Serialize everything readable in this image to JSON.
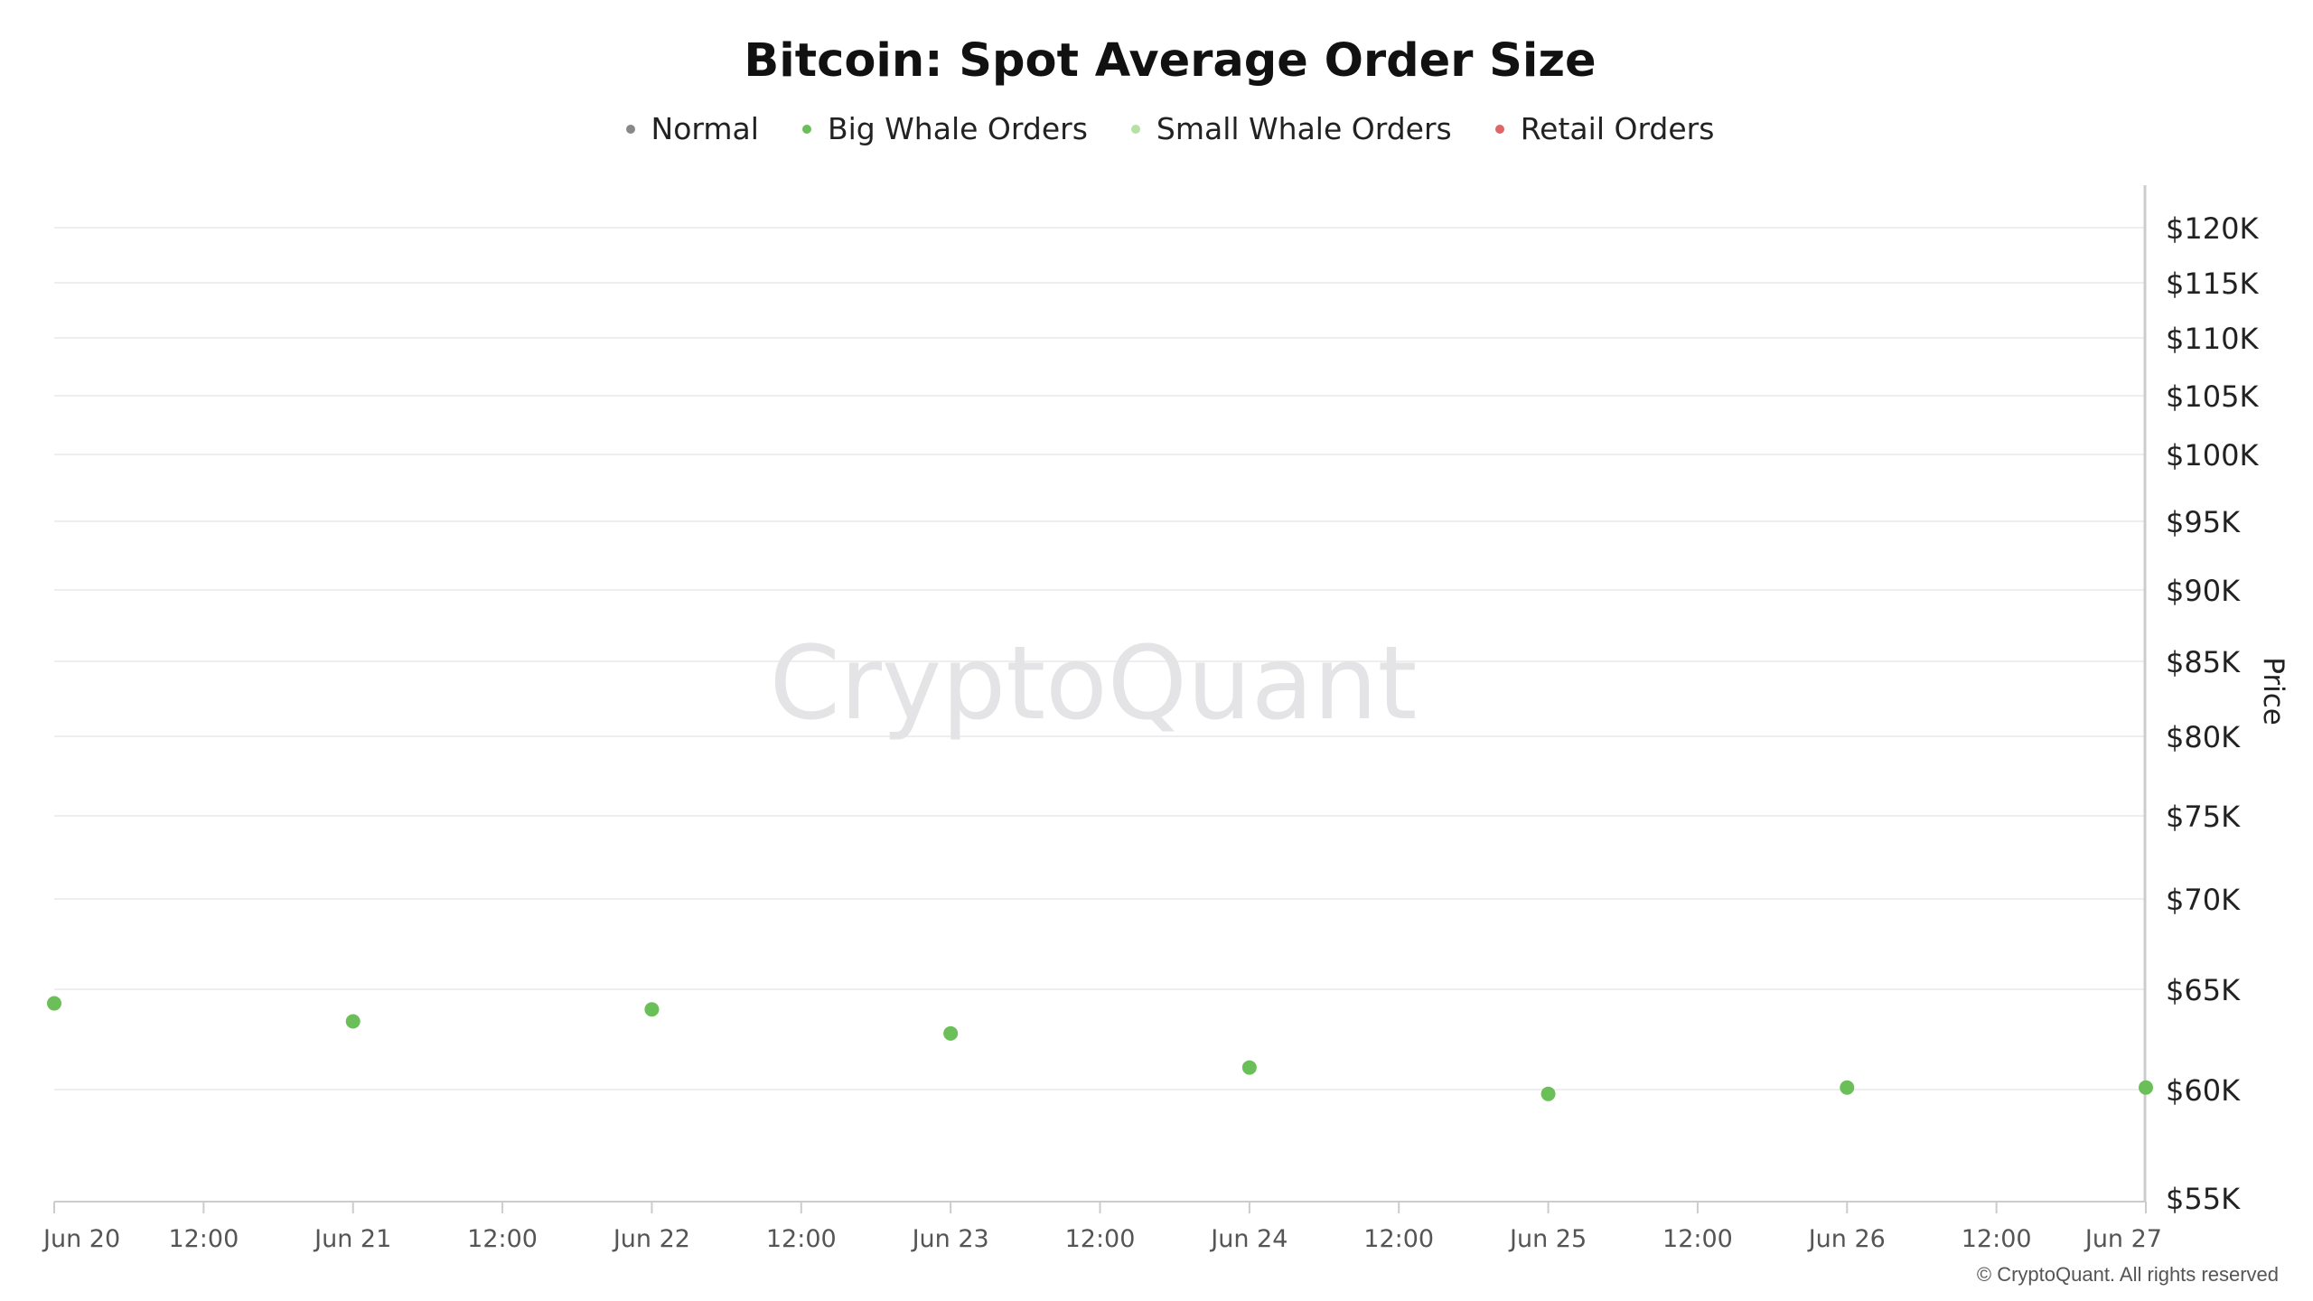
{
  "chart_data": {
    "type": "scatter",
    "title": "Bitcoin: Spot Average Order Size",
    "ylabel": "Price",
    "y_scale": "log",
    "ylim": [
      55000,
      123000
    ],
    "y_ticks": [
      55000,
      60000,
      65000,
      70000,
      75000,
      80000,
      85000,
      90000,
      95000,
      100000,
      105000,
      110000,
      115000,
      120000
    ],
    "y_tick_labels": [
      "$55K",
      "$60K",
      "$65K",
      "$70K",
      "$75K",
      "$80K",
      "$85K",
      "$90K",
      "$95K",
      "$100K",
      "$105K",
      "$110K",
      "$115K",
      "$120K"
    ],
    "x_tick_labels": [
      "Jun 20",
      "12:00",
      "Jun 21",
      "12:00",
      "Jun 22",
      "12:00",
      "Jun 23",
      "12:00",
      "Jun 24",
      "12:00",
      "Jun 25",
      "12:00",
      "Jun 26",
      "12:00",
      "Jun 27"
    ],
    "legend": [
      {
        "name": "Normal",
        "color": "#888888"
      },
      {
        "name": "Big Whale Orders",
        "color": "#6bbf59"
      },
      {
        "name": "Small Whale Orders",
        "color": "#b6e0a6"
      },
      {
        "name": "Retail Orders",
        "color": "#e06666"
      }
    ],
    "series": [
      {
        "name": "Big Whale Orders",
        "color": "#6bbf59",
        "x": [
          "Jun 20",
          "Jun 21",
          "Jun 22",
          "Jun 23",
          "Jun 24",
          "Jun 25",
          "Jun 26",
          "Jun 27"
        ],
        "values": [
          64300,
          63400,
          64000,
          62800,
          61100,
          59800,
          60100,
          60100
        ]
      }
    ],
    "grid": true,
    "legend_position": "top-center"
  },
  "watermark": "CryptoQuant",
  "footer": "© CryptoQuant. All rights reserved"
}
